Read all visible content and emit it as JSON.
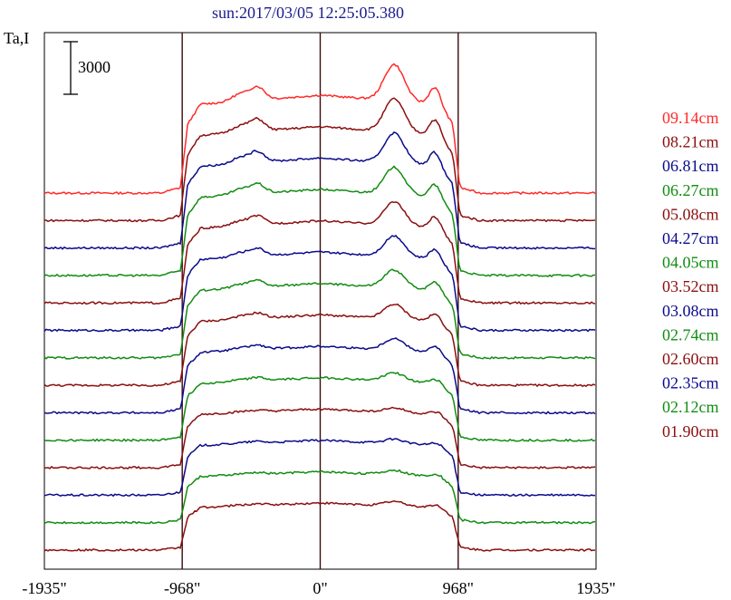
{
  "chart_data": {
    "type": "line",
    "title": "sun:2017/03/05 12:25:05.380",
    "ylabel": "Ta,I",
    "scale_bar_label": "3000",
    "xlim": [
      -1935,
      1935
    ],
    "x_ticks": [
      {
        "value": -1935,
        "label": "-1935\""
      },
      {
        "value": -968,
        "label": "-968\""
      },
      {
        "value": 0,
        "label": "0\""
      },
      {
        "value": 968,
        "label": "968\""
      },
      {
        "value": 1935,
        "label": "1935\""
      }
    ],
    "vertical_lines": [
      -968,
      0,
      968
    ],
    "colors": {
      "red": "#ff2a2a",
      "maroon": "#8b0e0e",
      "navy": "#0a0a8c",
      "green": "#118c11",
      "axis": "#000000",
      "title": "#1a1a8c"
    },
    "series": [
      {
        "name": "09.14cm",
        "color": "#ff2a2a"
      },
      {
        "name": "08.21cm",
        "color": "#8b0e0e"
      },
      {
        "name": "06.81cm",
        "color": "#0a0a8c"
      },
      {
        "name": "06.27cm",
        "color": "#118c11"
      },
      {
        "name": "05.08cm",
        "color": "#8b0e0e"
      },
      {
        "name": "04.27cm",
        "color": "#0a0a8c"
      },
      {
        "name": "04.05cm",
        "color": "#118c11"
      },
      {
        "name": "03.52cm",
        "color": "#8b0e0e"
      },
      {
        "name": "03.08cm",
        "color": "#0a0a8c"
      },
      {
        "name": "02.74cm",
        "color": "#118c11"
      },
      {
        "name": "02.60cm",
        "color": "#8b0e0e"
      },
      {
        "name": "02.35cm",
        "color": "#0a0a8c"
      },
      {
        "name": "02.12cm",
        "color": "#118c11"
      },
      {
        "name": "01.90cm",
        "color": "#8b0e0e"
      }
    ]
  }
}
